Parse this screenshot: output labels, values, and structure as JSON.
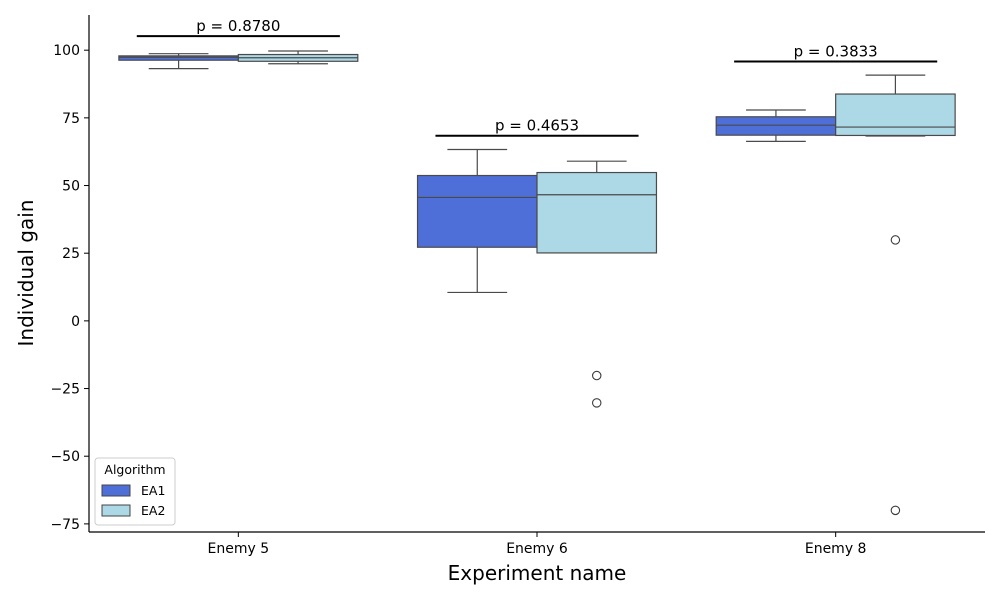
{
  "chart_data": {
    "type": "box",
    "xlabel": "Experiment name",
    "ylabel": "Individual gain",
    "ylim": [
      -78,
      113
    ],
    "yticks": [
      -75,
      -50,
      -25,
      0,
      25,
      50,
      75,
      100
    ],
    "ytick_labels": [
      "−75",
      "−50",
      "−25",
      "0",
      "25",
      "50",
      "75",
      "100"
    ],
    "categories": [
      "Enemy 5",
      "Enemy 6",
      "Enemy 8"
    ],
    "legend": {
      "title": "Algorithm",
      "position": "lower-left"
    },
    "series": [
      {
        "name": "EA1",
        "color": "#4f6fd8",
        "boxes": [
          {
            "whisker_low": 93.2,
            "q1": 96.3,
            "median": 97.4,
            "q3": 97.9,
            "whisker_high": 98.7,
            "outliers": []
          },
          {
            "whisker_low": 10.5,
            "q1": 27.2,
            "median": 45.6,
            "q3": 53.7,
            "whisker_high": 63.3,
            "outliers": []
          },
          {
            "whisker_low": 66.3,
            "q1": 68.6,
            "median": 72.3,
            "q3": 75.4,
            "whisker_high": 77.9,
            "outliers": []
          }
        ]
      },
      {
        "name": "EA2",
        "color": "#add8e6",
        "boxes": [
          {
            "whisker_low": 95.0,
            "q1": 95.9,
            "median": 97.2,
            "q3": 98.4,
            "whisker_high": 99.7,
            "outliers": []
          },
          {
            "whisker_low": 25.1,
            "q1": 25.1,
            "median": 46.6,
            "q3": 54.8,
            "whisker_high": 59.0,
            "outliers": [
              -20.2,
              -30.3
            ]
          },
          {
            "whisker_low": 68.3,
            "q1": 68.5,
            "median": 71.6,
            "q3": 83.8,
            "whisker_high": 90.8,
            "outliers": [
              29.9,
              -70.0
            ]
          }
        ]
      }
    ],
    "annotations": [
      {
        "category": "Enemy 5",
        "text": "p = 0.8780",
        "y": 105.2
      },
      {
        "category": "Enemy 6",
        "text": "p = 0.4653",
        "y": 68.4
      },
      {
        "category": "Enemy 8",
        "text": "p = 0.3833",
        "y": 95.8
      }
    ]
  }
}
